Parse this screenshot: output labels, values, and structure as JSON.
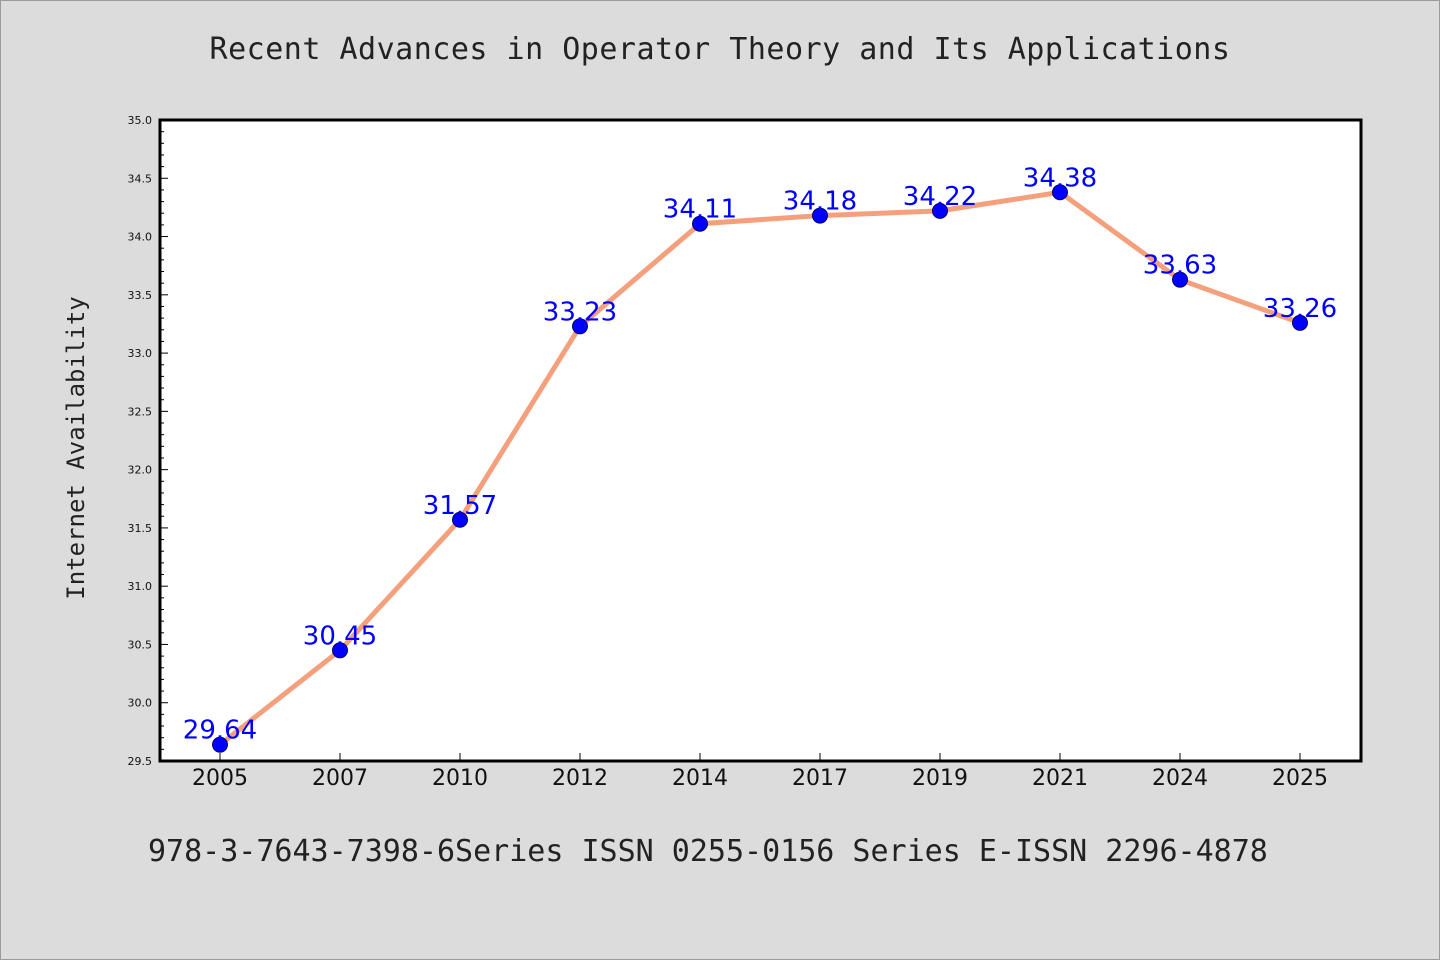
{
  "title": "Recent Advances in Operator Theory and Its Applications",
  "footer": "978-3-7643-7398-6Series ISSN 0255-0156 Series E-ISSN 2296-4878",
  "chart_data": {
    "type": "line",
    "title": "Recent Advances in Operator Theory and Its Applications",
    "xlabel": "",
    "ylabel": "Internet Availability",
    "categories": [
      "2005",
      "2007",
      "2010",
      "2012",
      "2014",
      "2017",
      "2019",
      "2021",
      "2024",
      "2025"
    ],
    "series": [
      {
        "values": [
          29.64,
          30.45,
          31.57,
          33.23,
          34.11,
          34.18,
          34.22,
          34.38,
          33.63,
          33.26
        ],
        "value_labels": [
          "29.64",
          "30.45",
          "31.57",
          "33.23",
          "34.11",
          "34.18",
          "34.22",
          "34.38",
          "33.63",
          "33.26"
        ]
      }
    ],
    "ylim": [
      29.5,
      35.0
    ],
    "yticks": [
      "29.5",
      "30.0",
      "30.5",
      "31.0",
      "31.5",
      "32.0",
      "32.5",
      "33.0",
      "33.5",
      "34.0",
      "34.5",
      "35.0"
    ],
    "grid": false,
    "legend": "none",
    "colors": {
      "line": "#f4a07c",
      "marker": "#0000ff",
      "data_label": "#0000ff",
      "plot_background": "#ffffff",
      "figure_background": "#dcdcdc"
    }
  }
}
